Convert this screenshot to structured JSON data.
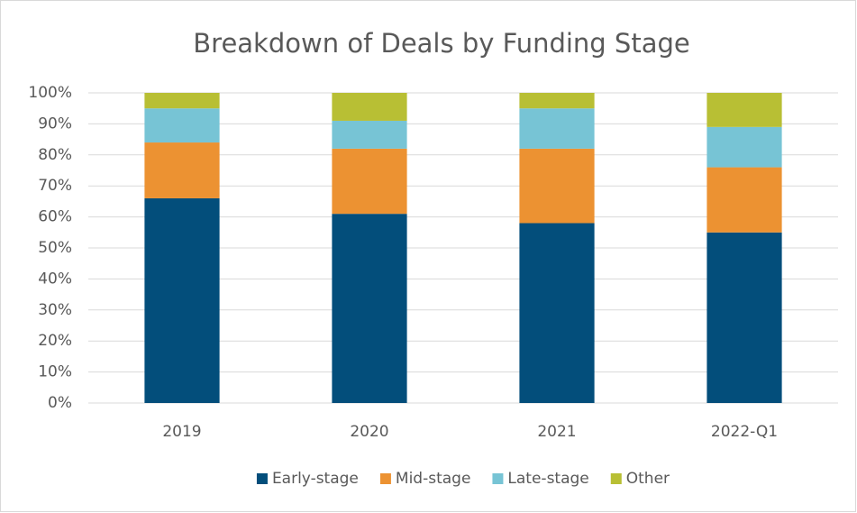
{
  "chart_data": {
    "type": "stacked_bar",
    "title": "Breakdown of Deals by Funding Stage",
    "categories": [
      "2019",
      "2020",
      "2021",
      "2022-Q1"
    ],
    "series": [
      {
        "name": "Early-stage",
        "color": "#034e7b",
        "values": [
          66,
          61,
          58,
          55
        ]
      },
      {
        "name": "Mid-stage",
        "color": "#ec9232",
        "values": [
          18,
          21,
          24,
          21
        ]
      },
      {
        "name": "Late-stage",
        "color": "#77c4d5",
        "values": [
          11,
          9,
          13,
          13
        ]
      },
      {
        "name": "Other",
        "color": "#b8bf34",
        "values": [
          5,
          9,
          5,
          11
        ]
      }
    ],
    "ylim": [
      0,
      100
    ],
    "yticks": [
      {
        "value": 0,
        "label": "0%"
      },
      {
        "value": 10,
        "label": "10%"
      },
      {
        "value": 20,
        "label": "20%"
      },
      {
        "value": 30,
        "label": "30%"
      },
      {
        "value": 40,
        "label": "40%"
      },
      {
        "value": 50,
        "label": "50%"
      },
      {
        "value": 60,
        "label": "60%"
      },
      {
        "value": 70,
        "label": "70%"
      },
      {
        "value": 80,
        "label": "80%"
      },
      {
        "value": 90,
        "label": "90%"
      },
      {
        "value": 100,
        "label": "100%"
      }
    ],
    "grid": true,
    "legend": "bottom"
  }
}
